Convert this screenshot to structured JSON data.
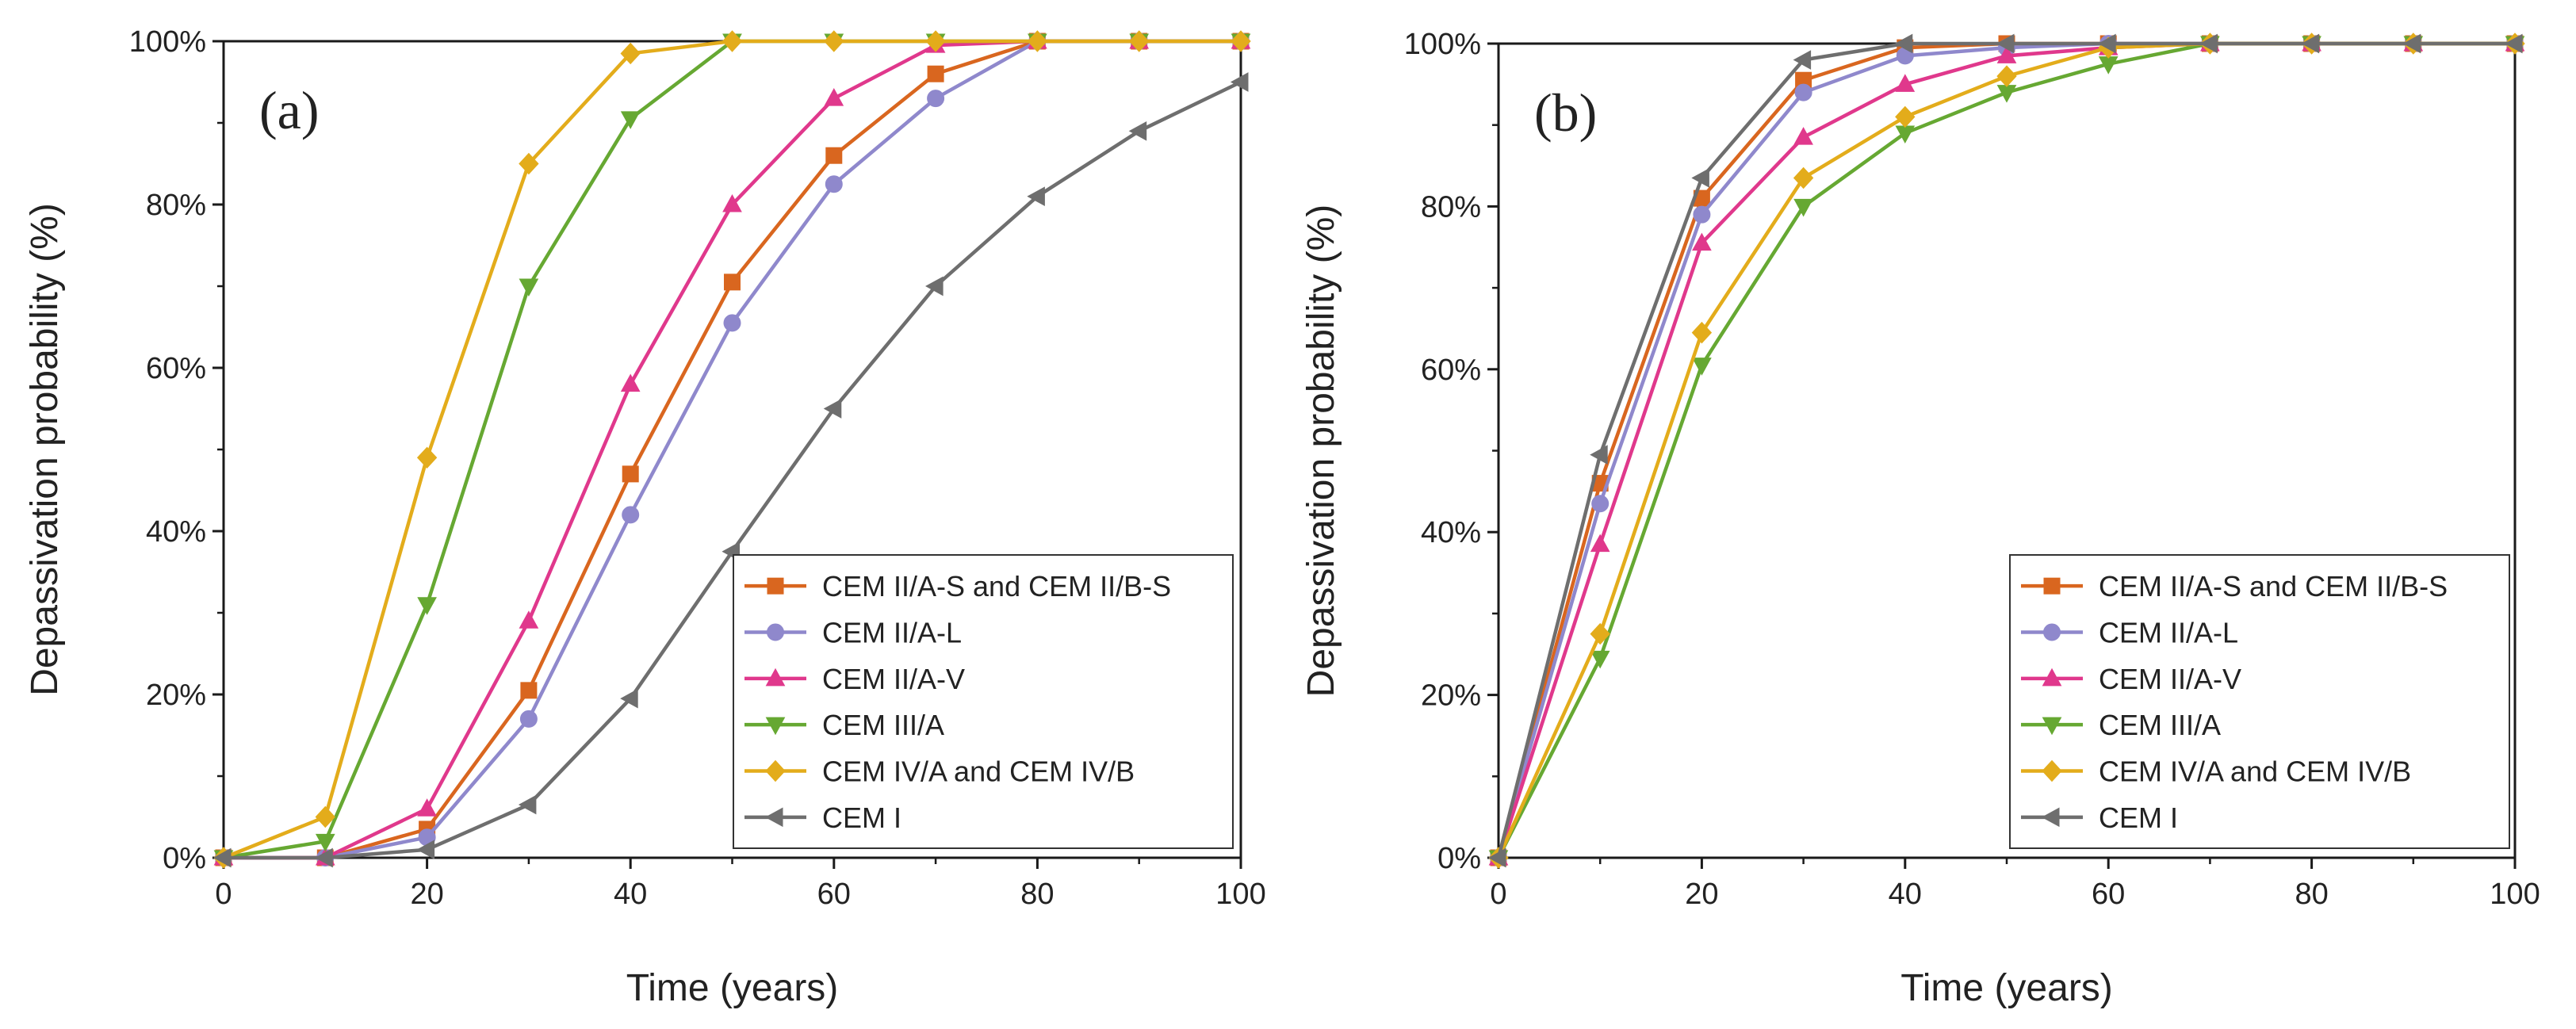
{
  "chart_data": [
    {
      "type": "line",
      "panel_label": "(a)",
      "xlabel": "Time (years)",
      "ylabel": "Depassivation probability (%)",
      "xlim": [
        0,
        100
      ],
      "ylim": [
        0,
        100
      ],
      "xticks": [
        "0",
        "20",
        "40",
        "60",
        "80",
        "100"
      ],
      "yticks": [
        "0%",
        "20%",
        "40%",
        "60%",
        "80%",
        "100%"
      ],
      "x": [
        0,
        10,
        20,
        30,
        40,
        50,
        60,
        70,
        80,
        90,
        100
      ],
      "legend_position": "bottom-right",
      "series": [
        {
          "name": "CEM II/A-S and CEM II/B-S",
          "color": "#d9661f",
          "marker": "square",
          "values": [
            0,
            0,
            3.5,
            20.5,
            47,
            70.5,
            86,
            96,
            100,
            100,
            100
          ]
        },
        {
          "name": "CEM II/A-L",
          "color": "#8f88cc",
          "marker": "circle",
          "values": [
            0,
            0,
            2.5,
            17,
            42,
            65.5,
            82.5,
            93,
            100,
            100,
            100
          ]
        },
        {
          "name": "CEM II/A-V",
          "color": "#e0388c",
          "marker": "triangle-up",
          "values": [
            0,
            0,
            6,
            29,
            58,
            80,
            93,
            99.5,
            100,
            100,
            100
          ]
        },
        {
          "name": "CEM III/A",
          "color": "#66a832",
          "marker": "triangle-down",
          "values": [
            0,
            2,
            31,
            70,
            90.5,
            100,
            100,
            100,
            100,
            100,
            100
          ]
        },
        {
          "name": "CEM IV/A and CEM IV/B",
          "color": "#e3ac1b",
          "marker": "diamond",
          "values": [
            0,
            5,
            49,
            85,
            98.5,
            100,
            100,
            100,
            100,
            100,
            100
          ]
        },
        {
          "name": "CEM I",
          "color": "#6e6e6e",
          "marker": "triangle-left",
          "values": [
            0,
            0,
            1,
            6.5,
            19.5,
            37.5,
            55,
            70,
            81,
            89,
            95
          ]
        }
      ]
    },
    {
      "type": "line",
      "panel_label": "(b)",
      "xlabel": "Time (years)",
      "ylabel": "Depassivation probability (%)",
      "xlim": [
        0,
        100
      ],
      "ylim": [
        0,
        100
      ],
      "xticks": [
        "0",
        "20",
        "40",
        "60",
        "80",
        "100"
      ],
      "yticks": [
        "0%",
        "20%",
        "40%",
        "60%",
        "80%",
        "100%"
      ],
      "x": [
        0,
        10,
        20,
        30,
        40,
        50,
        60,
        70,
        80,
        90,
        100
      ],
      "legend_position": "bottom-right",
      "series": [
        {
          "name": "CEM II/A-S and CEM II/B-S",
          "color": "#d9661f",
          "marker": "square",
          "values": [
            0,
            46,
            81,
            95.5,
            99.5,
            100,
            100,
            100,
            100,
            100,
            100
          ]
        },
        {
          "name": "CEM II/A-L",
          "color": "#8f88cc",
          "marker": "circle",
          "values": [
            0,
            43.5,
            79,
            94,
            98.5,
            99.5,
            100,
            100,
            100,
            100,
            100
          ]
        },
        {
          "name": "CEM II/A-V",
          "color": "#e0388c",
          "marker": "triangle-up",
          "values": [
            0,
            38.5,
            75.5,
            88.5,
            95,
            98.5,
            99.5,
            100,
            100,
            100,
            100
          ]
        },
        {
          "name": "CEM III/A",
          "color": "#66a832",
          "marker": "triangle-down",
          "values": [
            0,
            24.5,
            60.5,
            80,
            89,
            94,
            97.5,
            100,
            100,
            100,
            100
          ]
        },
        {
          "name": "CEM IV/A and CEM IV/B",
          "color": "#e3ac1b",
          "marker": "diamond",
          "values": [
            0,
            27.5,
            64.5,
            83.5,
            91,
            96,
            99.5,
            100,
            100,
            100,
            100
          ]
        },
        {
          "name": "CEM I",
          "color": "#6e6e6e",
          "marker": "triangle-left",
          "values": [
            0,
            49.5,
            83.5,
            98,
            100,
            100,
            100,
            100,
            100,
            100,
            100
          ]
        }
      ]
    }
  ]
}
